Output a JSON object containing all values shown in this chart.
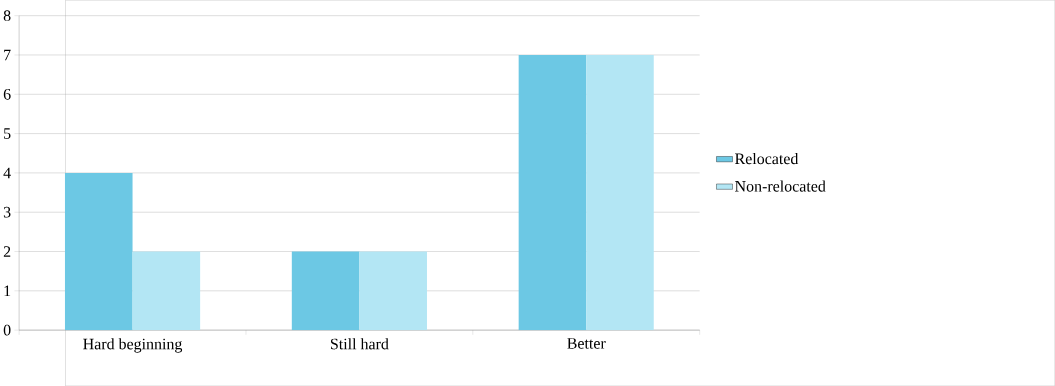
{
  "chart_data": {
    "type": "bar",
    "categories": [
      "Hard beginning",
      "Still hard",
      "Better"
    ],
    "series": [
      {
        "name": "Relocated",
        "color": "#6cc8e4",
        "values": [
          4,
          2,
          7
        ]
      },
      {
        "name": "Non-relocated",
        "color": "#b3e6f4",
        "values": [
          2,
          2,
          7
        ]
      }
    ],
    "ylim": [
      0,
      8
    ],
    "yticks": [
      0,
      1,
      2,
      3,
      4,
      5,
      6,
      7,
      8
    ],
    "grid": "y",
    "legend": "right"
  }
}
